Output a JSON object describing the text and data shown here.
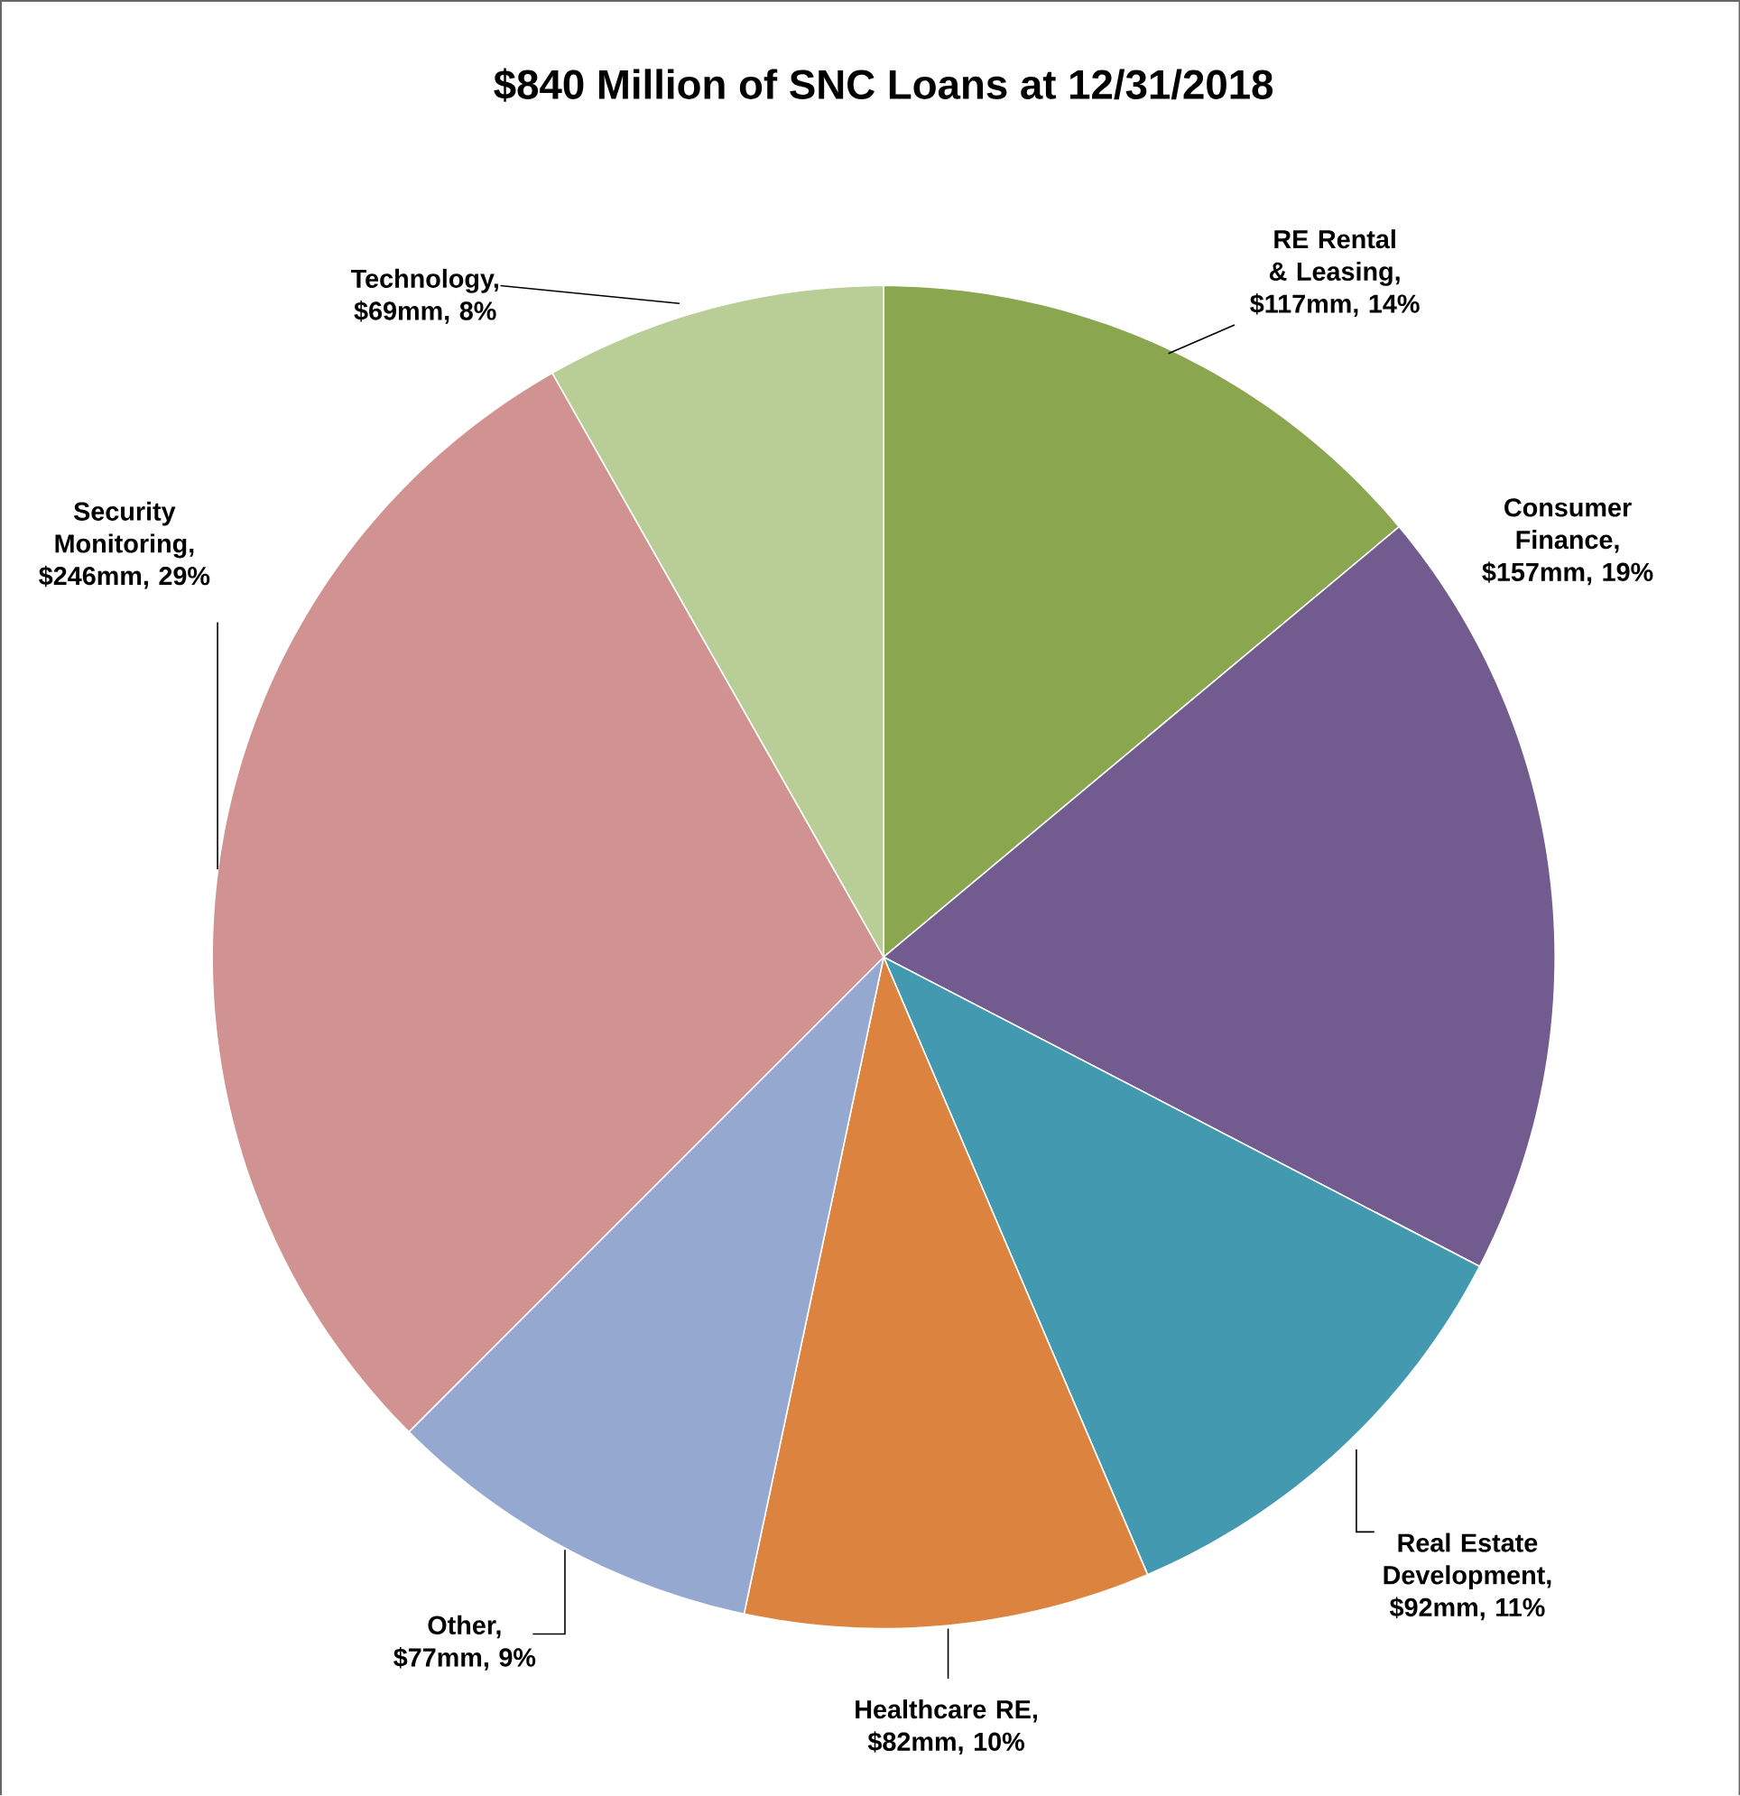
{
  "chart_data": {
    "type": "pie",
    "title": "$840 Million of SNC Loans at 12/31/2018",
    "categories": [
      "RE Rental & Leasing, $117mm, 14%",
      "Consumer Finance, $157mm, 19%",
      "Real Estate Development, $92mm, 11%",
      "Healthcare RE, $82mm, 10%",
      "Other, $77mm, 9%",
      "Security Monitoring, $246mm, 29%",
      "Technology, $69mm, 8%"
    ],
    "values": [
      117,
      157,
      92,
      82,
      77,
      246,
      69
    ],
    "colors": [
      "#8aa64f",
      "#725b8f",
      "#4399b0",
      "#dc843f",
      "#95a9d0",
      "#d19391",
      "#b9cd96"
    ]
  }
}
